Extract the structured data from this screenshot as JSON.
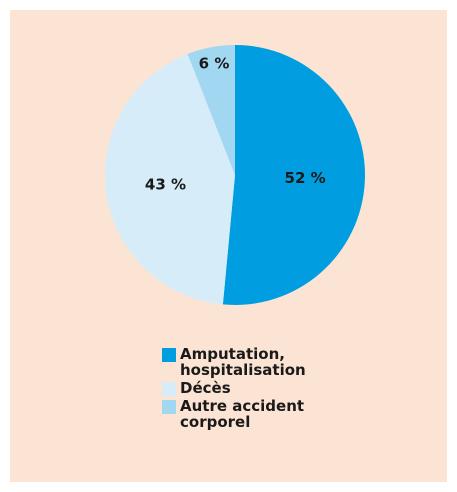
{
  "chart_data": {
    "type": "pie",
    "categories": [
      "Amputation, hospitalisation",
      "Décès",
      "Autre accident corporel"
    ],
    "values": [
      52,
      43,
      6
    ],
    "value_labels": [
      "52 %",
      "43 %",
      "6 %"
    ],
    "colors": [
      "#009ee0",
      "#d6ecf9",
      "#a2d7f2"
    ],
    "legend": "bottom"
  }
}
